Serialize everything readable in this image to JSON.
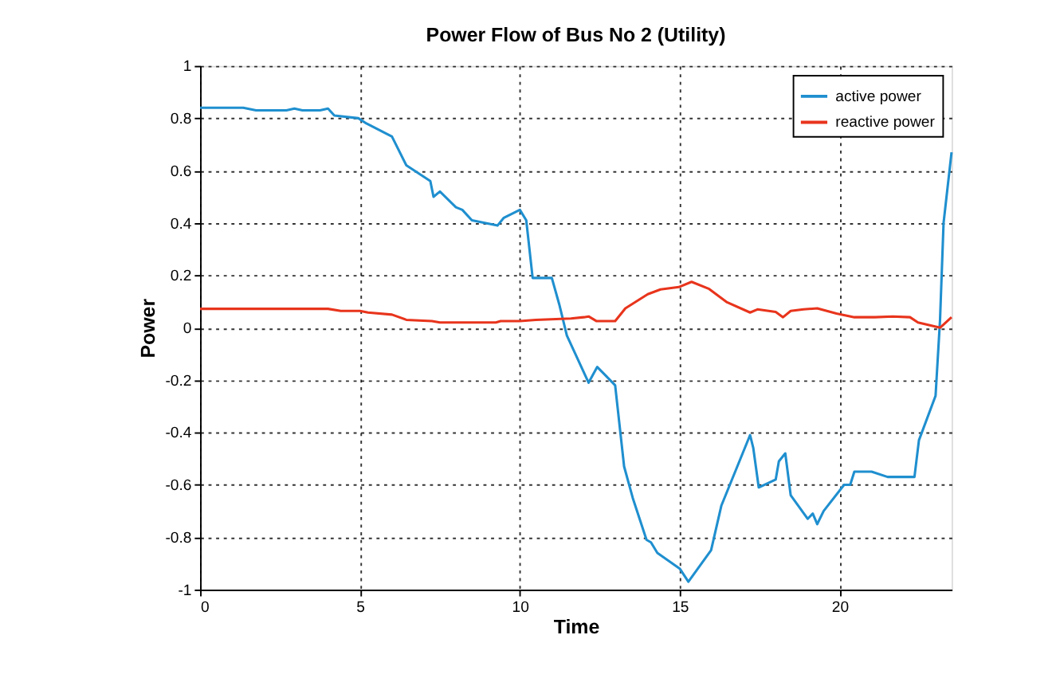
{
  "chart_data": {
    "type": "line",
    "title": "Power Flow of Bus No 2 (Utility)",
    "xlabel": "Time",
    "ylabel": "Power",
    "xlim": [
      0,
      23.5
    ],
    "xticks": [
      0,
      5,
      10,
      15,
      20
    ],
    "ylim": [
      -1,
      1
    ],
    "yticks": [
      -1,
      -0.8,
      -0.6,
      -0.4,
      -0.2,
      0,
      0.2,
      0.4,
      0.6,
      0.8,
      1
    ],
    "grid": true,
    "legend": "top right",
    "line_style": "solid",
    "marker": "none",
    "series": [
      {
        "name": "active power",
        "color": "#1f8fcf",
        "x": [
          0,
          1.35,
          1.75,
          2.7,
          2.95,
          3.2,
          3.75,
          4.0,
          4.2,
          4.95,
          5.2,
          6.0,
          6.45,
          7.2,
          7.3,
          7.5,
          8.0,
          8.2,
          8.5,
          9.3,
          9.5,
          10.0,
          10.2,
          10.4,
          11.0,
          11.23,
          11.47,
          12.15,
          12.42,
          12.98,
          13.26,
          13.53,
          13.96,
          14.1,
          14.3,
          15.0,
          15.27,
          15.98,
          16.3,
          17.2,
          17.3,
          17.47,
          18.0,
          18.1,
          18.3,
          18.47,
          19.0,
          19.16,
          19.3,
          19.5,
          20.14,
          20.33,
          20.46,
          21.0,
          21.5,
          22.06,
          22.34,
          22.48,
          23.0,
          23.14,
          23.25,
          23.5
        ],
        "values": [
          0.84,
          0.84,
          0.83,
          0.83,
          0.837,
          0.83,
          0.83,
          0.837,
          0.81,
          0.8,
          0.78,
          0.73,
          0.62,
          0.56,
          0.5,
          0.52,
          0.46,
          0.45,
          0.41,
          0.39,
          0.42,
          0.45,
          0.41,
          0.19,
          0.19,
          0.09,
          -0.03,
          -0.21,
          -0.15,
          -0.22,
          -0.53,
          -0.65,
          -0.81,
          -0.82,
          -0.86,
          -0.92,
          -0.97,
          -0.85,
          -0.68,
          -0.41,
          -0.46,
          -0.61,
          -0.58,
          -0.51,
          -0.48,
          -0.64,
          -0.73,
          -0.71,
          -0.75,
          -0.7,
          -0.6,
          -0.6,
          -0.55,
          -0.55,
          -0.57,
          -0.57,
          -0.57,
          -0.43,
          -0.26,
          0.03,
          0.4,
          0.67
        ]
      },
      {
        "name": "reactive power",
        "color": "#e8341c",
        "x": [
          0,
          4.0,
          4.4,
          5.0,
          5.25,
          6.0,
          6.45,
          7.25,
          7.5,
          9.25,
          9.4,
          10.0,
          10.5,
          11.6,
          12.0,
          12.15,
          12.4,
          12.98,
          13.3,
          14.0,
          14.4,
          14.97,
          15.37,
          15.92,
          16.48,
          17.2,
          17.43,
          18.0,
          18.23,
          18.47,
          18.87,
          19.3,
          19.9,
          20.46,
          21.1,
          21.66,
          22.2,
          22.45,
          23.14,
          23.5
        ],
        "values": [
          0.072,
          0.072,
          0.064,
          0.064,
          0.058,
          0.05,
          0.03,
          0.025,
          0.02,
          0.02,
          0.025,
          0.025,
          0.03,
          0.035,
          0.04,
          0.043,
          0.025,
          0.025,
          0.074,
          0.128,
          0.146,
          0.155,
          0.175,
          0.148,
          0.097,
          0.058,
          0.07,
          0.06,
          0.04,
          0.064,
          0.07,
          0.074,
          0.054,
          0.04,
          0.04,
          0.043,
          0.04,
          0.02,
          0.0,
          0.04
        ]
      }
    ]
  }
}
